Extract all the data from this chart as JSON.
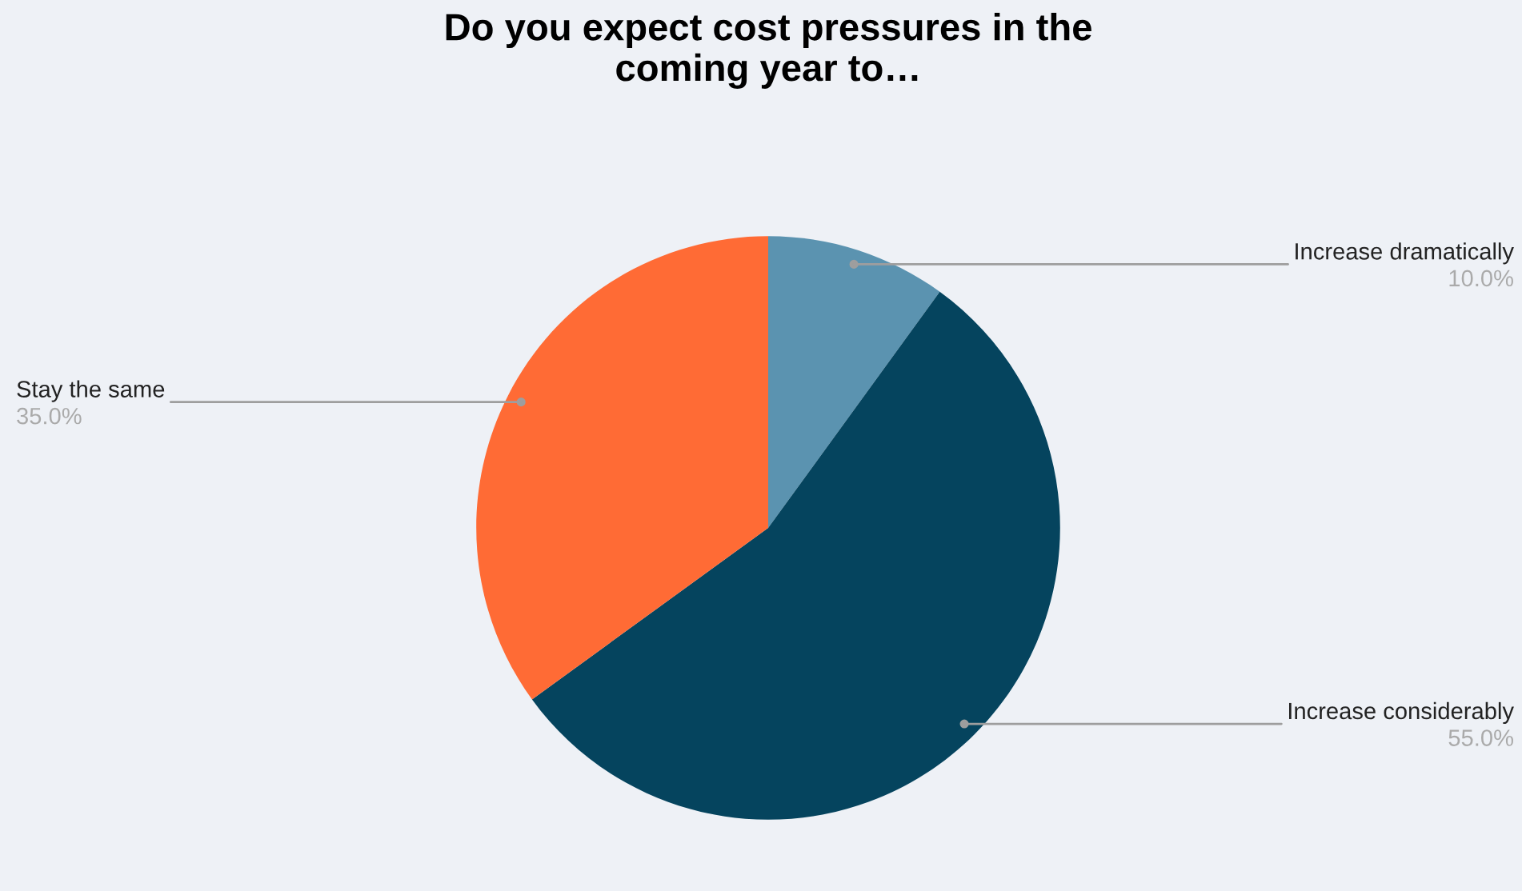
{
  "chart_data": {
    "type": "pie",
    "title": "Do you expect cost pressures in the\ncoming year to…",
    "categories": [
      "Increase dramatically",
      "Increase considerably",
      "Stay the same"
    ],
    "values": [
      10,
      55,
      35
    ],
    "colors": [
      "#5b93b0",
      "#05445e",
      "#ff6b35"
    ],
    "value_labels": [
      "10.0%",
      "55.0%",
      "35.0%"
    ]
  }
}
